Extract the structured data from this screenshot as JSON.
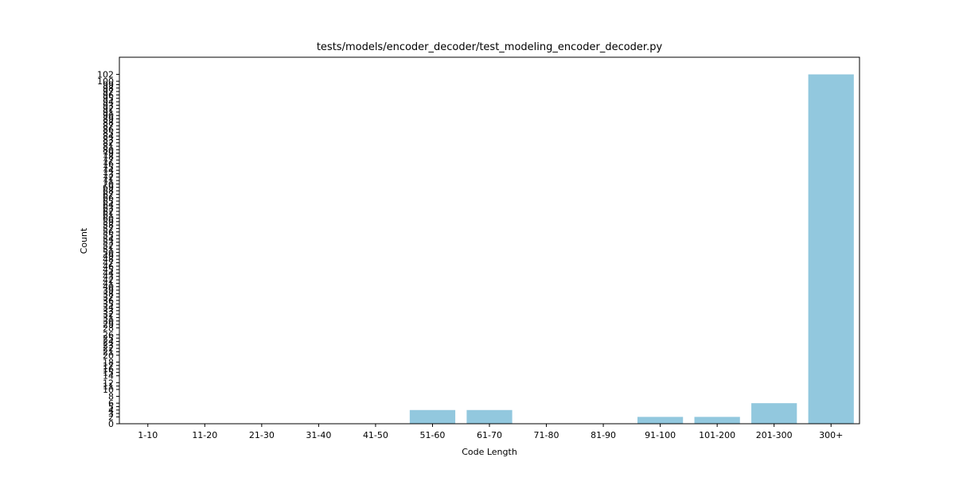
{
  "chart_data": {
    "type": "bar",
    "title": "tests/models/encoder_decoder/test_modeling_encoder_decoder.py",
    "xlabel": "Code Length",
    "ylabel": "Count",
    "categories": [
      "1-10",
      "11-20",
      "21-30",
      "31-40",
      "41-50",
      "51-60",
      "61-70",
      "71-80",
      "81-90",
      "91-100",
      "101-200",
      "201-300",
      "300+"
    ],
    "values": [
      0,
      0,
      0,
      0,
      0,
      4,
      4,
      0,
      0,
      2,
      2,
      6,
      102
    ],
    "ylim": [
      0,
      107
    ],
    "y_ticks": [
      0,
      2,
      3,
      4,
      5,
      6,
      8,
      10,
      11,
      12,
      14,
      15,
      16,
      17,
      18,
      20,
      21,
      22,
      23,
      24,
      25,
      26,
      28,
      29,
      30,
      31,
      32,
      33,
      34,
      35,
      36,
      37,
      38,
      39,
      40,
      41,
      42,
      43,
      44,
      45,
      46,
      47,
      48,
      49,
      50,
      51,
      52,
      53,
      54,
      55,
      56,
      57,
      58,
      59,
      60,
      61,
      62,
      63,
      64,
      65,
      66,
      67,
      68,
      69,
      70,
      71,
      72,
      73,
      74,
      75,
      76,
      77,
      78,
      79,
      80,
      81,
      82,
      83,
      84,
      85,
      86,
      87,
      88,
      89,
      90,
      91,
      92,
      93,
      94,
      95,
      96,
      97,
      98,
      99,
      100,
      102
    ],
    "bar_color": "#92c8de",
    "grid": false,
    "legend": false
  }
}
